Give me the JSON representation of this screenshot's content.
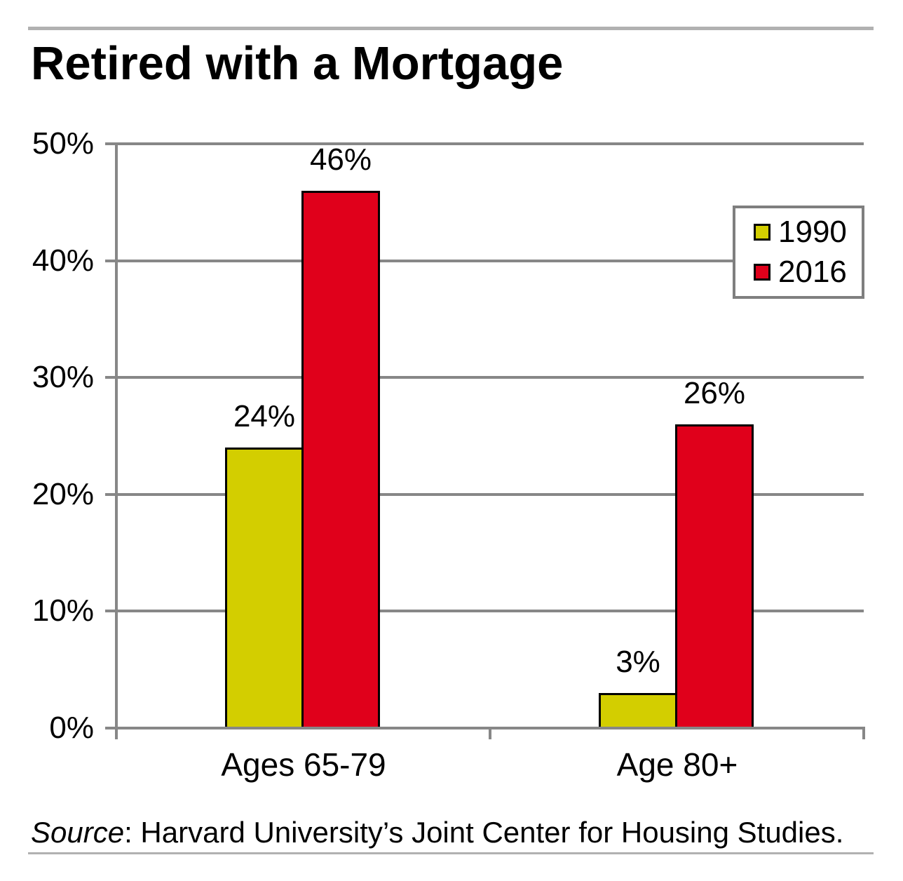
{
  "title": "Retired with a Mortgage",
  "chart_data": {
    "type": "bar",
    "categories": [
      "Ages 65-79",
      "Age 80+"
    ],
    "series": [
      {
        "name": "1990",
        "color": "#d3ce00",
        "values": [
          24,
          3
        ]
      },
      {
        "name": "2016",
        "color": "#e0001b",
        "values": [
          46,
          26
        ]
      }
    ],
    "value_suffix": "%",
    "data_labels": [
      "24%",
      "46%",
      "3%",
      "26%"
    ],
    "ylim": [
      0,
      50
    ],
    "ytick_step": 10,
    "ytick_labels": [
      "0%",
      "10%",
      "20%",
      "30%",
      "40%",
      "50%"
    ],
    "xlabel": "",
    "ylabel": "",
    "grid": true,
    "legend_position": "top-right"
  },
  "legend": {
    "items": [
      {
        "label": "1990",
        "color": "#d3ce00"
      },
      {
        "label": "2016",
        "color": "#e0001b"
      }
    ]
  },
  "source": {
    "label": "Source",
    "separator": ": ",
    "text": "Harvard University’s Joint Center for Housing Studies."
  },
  "colors": {
    "series_1990": "#d3ce00",
    "series_2016": "#e0001b",
    "bar_border": "#000000",
    "grid_and_axis": "#878787",
    "rule": "#b1b1b1",
    "legend_border": "#7f7f7f",
    "text": "#000000",
    "background": "#ffffff"
  }
}
